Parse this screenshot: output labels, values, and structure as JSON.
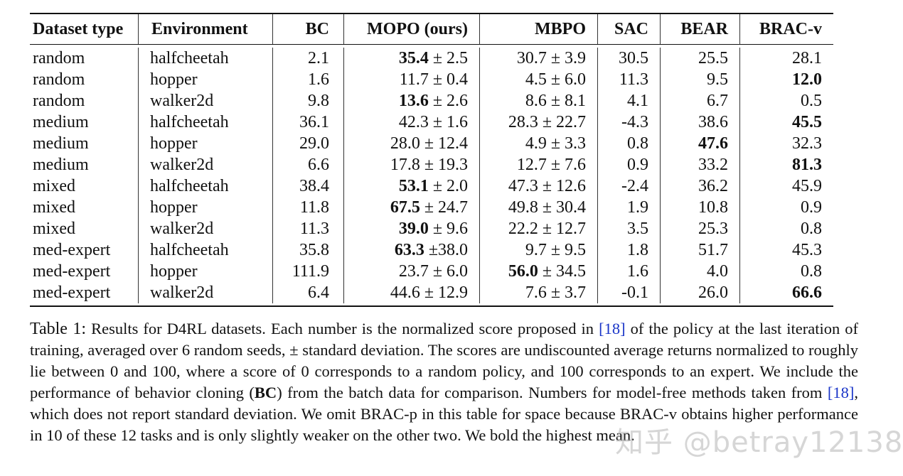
{
  "table": {
    "headers": [
      "Dataset type",
      "Environment",
      "BC",
      "MOPO (ours)",
      "MBPO",
      "SAC",
      "BEAR",
      "BRAC-v"
    ],
    "pm": "±",
    "rows": [
      {
        "dataset": "random",
        "env": "halfcheetah",
        "bc": "2.1",
        "mopo": {
          "mean": "35.4",
          "sd": "2.5",
          "bold": true
        },
        "mbpo": {
          "mean": "30.7",
          "sd": "3.9",
          "bold": false
        },
        "sac": {
          "v": "30.5",
          "bold": false
        },
        "bear": {
          "v": "25.5",
          "bold": false
        },
        "bracv": {
          "v": "28.1",
          "bold": false
        }
      },
      {
        "dataset": "random",
        "env": "hopper",
        "bc": "1.6",
        "mopo": {
          "mean": "11.7",
          "sd": "0.4",
          "bold": false
        },
        "mbpo": {
          "mean": "4.5",
          "sd": "6.0",
          "bold": false
        },
        "sac": {
          "v": "11.3",
          "bold": false
        },
        "bear": {
          "v": "9.5",
          "bold": false
        },
        "bracv": {
          "v": "12.0",
          "bold": true
        }
      },
      {
        "dataset": "random",
        "env": "walker2d",
        "bc": "9.8",
        "mopo": {
          "mean": "13.6",
          "sd": "2.6",
          "bold": true
        },
        "mbpo": {
          "mean": "8.6",
          "sd": "8.1",
          "bold": false
        },
        "sac": {
          "v": "4.1",
          "bold": false
        },
        "bear": {
          "v": "6.7",
          "bold": false
        },
        "bracv": {
          "v": "0.5",
          "bold": false
        }
      },
      {
        "dataset": "medium",
        "env": "halfcheetah",
        "bc": "36.1",
        "mopo": {
          "mean": "42.3",
          "sd": "1.6",
          "bold": false
        },
        "mbpo": {
          "mean": "28.3",
          "sd": "22.7",
          "bold": false
        },
        "sac": {
          "v": "-4.3",
          "bold": false
        },
        "bear": {
          "v": "38.6",
          "bold": false
        },
        "bracv": {
          "v": "45.5",
          "bold": true
        }
      },
      {
        "dataset": "medium",
        "env": "hopper",
        "bc": "29.0",
        "mopo": {
          "mean": "28.0",
          "sd": "12.4",
          "bold": false
        },
        "mbpo": {
          "mean": "4.9",
          "sd": "3.3",
          "bold": false
        },
        "sac": {
          "v": "0.8",
          "bold": false
        },
        "bear": {
          "v": "47.6",
          "bold": true
        },
        "bracv": {
          "v": "32.3",
          "bold": false
        }
      },
      {
        "dataset": "medium",
        "env": "walker2d",
        "bc": "6.6",
        "mopo": {
          "mean": "17.8",
          "sd": "19.3",
          "bold": false
        },
        "mbpo": {
          "mean": "12.7",
          "sd": "7.6",
          "bold": false
        },
        "sac": {
          "v": "0.9",
          "bold": false
        },
        "bear": {
          "v": "33.2",
          "bold": false
        },
        "bracv": {
          "v": "81.3",
          "bold": true
        }
      },
      {
        "dataset": "mixed",
        "env": "halfcheetah",
        "bc": "38.4",
        "mopo": {
          "mean": "53.1",
          "sd": "2.0",
          "bold": true
        },
        "mbpo": {
          "mean": "47.3",
          "sd": "12.6",
          "bold": false
        },
        "sac": {
          "v": "-2.4",
          "bold": false
        },
        "bear": {
          "v": "36.2",
          "bold": false
        },
        "bracv": {
          "v": "45.9",
          "bold": false
        }
      },
      {
        "dataset": "mixed",
        "env": "hopper",
        "bc": "11.8",
        "mopo": {
          "mean": "67.5",
          "sd": "24.7",
          "bold": true
        },
        "mbpo": {
          "mean": "49.8",
          "sd": "30.4",
          "bold": false
        },
        "sac": {
          "v": "1.9",
          "bold": false
        },
        "bear": {
          "v": "10.8",
          "bold": false
        },
        "bracv": {
          "v": "0.9",
          "bold": false
        }
      },
      {
        "dataset": "mixed",
        "env": "walker2d",
        "bc": "11.3",
        "mopo": {
          "mean": "39.0",
          "sd": "9.6",
          "bold": true
        },
        "mbpo": {
          "mean": "22.2",
          "sd": "12.7",
          "bold": false
        },
        "sac": {
          "v": "3.5",
          "bold": false
        },
        "bear": {
          "v": "25.3",
          "bold": false
        },
        "bracv": {
          "v": "0.8",
          "bold": false
        }
      },
      {
        "dataset": "med-expert",
        "env": "halfcheetah",
        "bc": "35.8",
        "mopo": {
          "mean": "63.3",
          "sd": "38.0",
          "bold": true,
          "tight": true
        },
        "mbpo": {
          "mean": "9.7",
          "sd": "9.5",
          "bold": false
        },
        "sac": {
          "v": "1.8",
          "bold": false
        },
        "bear": {
          "v": "51.7",
          "bold": false
        },
        "bracv": {
          "v": "45.3",
          "bold": false
        }
      },
      {
        "dataset": "med-expert",
        "env": "hopper",
        "bc": "111.9",
        "mopo": {
          "mean": "23.7",
          "sd": "6.0",
          "bold": false
        },
        "mbpo": {
          "mean": "56.0",
          "sd": "34.5",
          "bold": true
        },
        "sac": {
          "v": "1.6",
          "bold": false
        },
        "bear": {
          "v": "4.0",
          "bold": false
        },
        "bracv": {
          "v": "0.8",
          "bold": false
        }
      },
      {
        "dataset": "med-expert",
        "env": "walker2d",
        "bc": "6.4",
        "mopo": {
          "mean": "44.6",
          "sd": "12.9",
          "bold": false
        },
        "mbpo": {
          "mean": "7.6",
          "sd": "3.7",
          "bold": false
        },
        "sac": {
          "v": "-0.1",
          "bold": false
        },
        "bear": {
          "v": "26.0",
          "bold": false
        },
        "bracv": {
          "v": "66.6",
          "bold": true
        }
      }
    ]
  },
  "caption": {
    "label": "Table 1:",
    "s1": " Results for D4RL datasets. Each number is the normalized score proposed in ",
    "cite1": "[18]",
    "s2": " of the policy at the last iteration of training, averaged over 6 random seeds, ± standard deviation. The scores are undiscounted average returns normalized to roughly lie between 0 and 100, where a score of 0 corresponds to a random policy, and 100 corresponds to an expert. We include the performance of behavior cloning (",
    "bc_bold": "BC",
    "s3": ") from the batch data for comparison. Numbers for model-free methods taken from ",
    "cite2": "[18]",
    "s4": ", which does not report standard deviation. We omit BRAC-p in this table for space because BRAC-v obtains higher performance in 10 of these 12 tasks and is only slightly weaker on the other two. We bold the highest mean."
  },
  "watermark": "知乎 @betray12138"
}
